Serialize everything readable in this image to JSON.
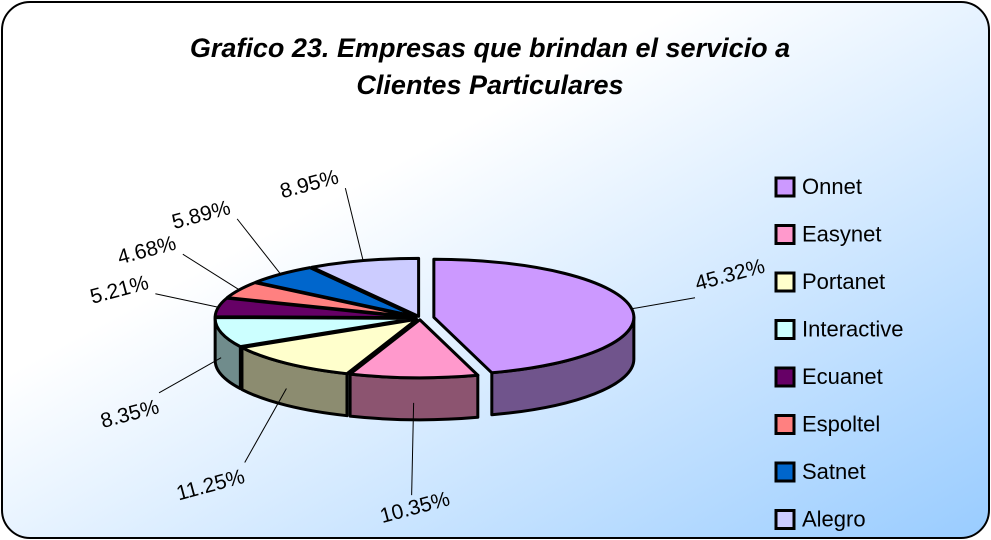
{
  "chart_data": {
    "type": "pie3d",
    "title": [
      "Grafico 23.  Empresas que brindan el servicio a",
      "Clientes Particulares"
    ],
    "categories": [
      "Onnet",
      "Easynet",
      "Portanet",
      "Interactive",
      "Ecuanet",
      "Espoltel",
      "Satnet",
      "Alegro"
    ],
    "values": [
      45.32,
      10.35,
      11.25,
      8.35,
      5.21,
      4.68,
      5.89,
      8.95
    ],
    "value_labels": [
      "45.32%",
      "10.35%",
      "11.25%",
      "8.35%",
      "5.21%",
      "4.68%",
      "5.89%",
      "8.95%"
    ],
    "colors": [
      "#cc99ff",
      "#ff99cc",
      "#ffffcc",
      "#ccffff",
      "#660066",
      "#ff8080",
      "#0066cc",
      "#ccccff"
    ],
    "legend": "right"
  }
}
